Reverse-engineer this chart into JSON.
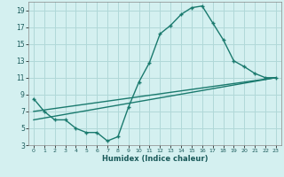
{
  "xlabel": "Humidex (Indice chaleur)",
  "bg_color": "#d4f0f0",
  "grid_color": "#b0d8d8",
  "line_color": "#1a7a6e",
  "xlim": [
    -0.5,
    23.5
  ],
  "ylim": [
    3,
    20
  ],
  "xticks": [
    0,
    1,
    2,
    3,
    4,
    5,
    6,
    7,
    8,
    9,
    10,
    11,
    12,
    13,
    14,
    15,
    16,
    17,
    18,
    19,
    20,
    21,
    22,
    23
  ],
  "yticks": [
    3,
    5,
    7,
    9,
    11,
    13,
    15,
    17,
    19
  ],
  "line1_x": [
    0,
    1,
    2,
    3,
    4,
    5,
    6,
    7,
    8,
    9,
    10,
    11,
    12,
    13,
    14,
    15,
    16,
    17,
    18,
    19,
    20,
    21,
    22,
    23
  ],
  "line1_y": [
    8.5,
    7.0,
    6.0,
    6.0,
    5.0,
    4.5,
    4.5,
    3.5,
    4.0,
    7.5,
    10.5,
    12.8,
    16.2,
    17.2,
    18.5,
    19.3,
    19.5,
    17.5,
    15.5,
    13.0,
    12.3,
    11.5,
    11.0,
    11.0
  ],
  "line2_x": [
    0,
    23
  ],
  "line2_y": [
    7.0,
    11.0
  ],
  "line3_x": [
    0,
    23
  ],
  "line3_y": [
    6.0,
    11.0
  ],
  "marker_size": 3.5,
  "line_width": 1.0
}
